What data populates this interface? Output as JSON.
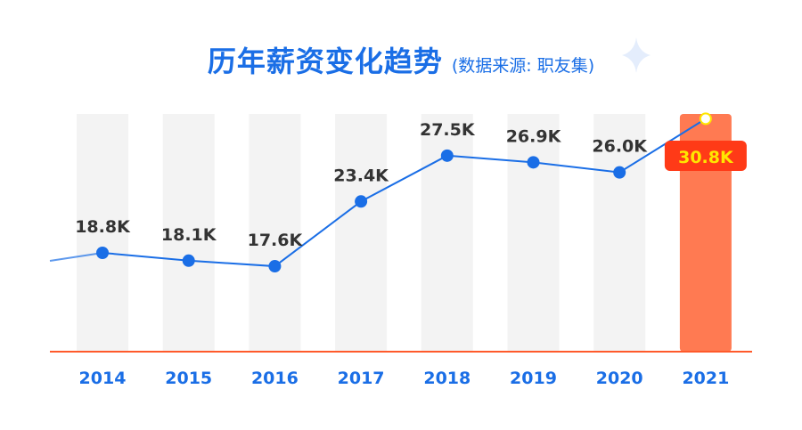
{
  "title": "历年薪资变化趋势",
  "subtitle": "(数据来源: 职友集)",
  "chart_data": {
    "type": "line",
    "categories": [
      "2014",
      "2015",
      "2016",
      "2017",
      "2018",
      "2019",
      "2020",
      "2021"
    ],
    "values": [
      18.8,
      18.1,
      17.6,
      23.4,
      27.5,
      26.9,
      26.0,
      30.8
    ],
    "data_labels": [
      "18.8K",
      "18.1K",
      "17.6K",
      "23.4K",
      "27.5K",
      "26.9K",
      "26.0K",
      "30.8K"
    ],
    "unit": "K",
    "highlight_category": "2021",
    "grid": false,
    "legend": "none",
    "colors": {
      "line": "#1a6ee6",
      "point": "#1a6ee6",
      "column_bg": "#f3f3f3",
      "highlight_column": "#ff7a52",
      "highlight_label_bg": "#ff3a17",
      "highlight_label_text": "#ffe600",
      "highlight_point": "#ffe600",
      "axis": "#ff5a2b",
      "title": "#1a6ee6"
    }
  }
}
